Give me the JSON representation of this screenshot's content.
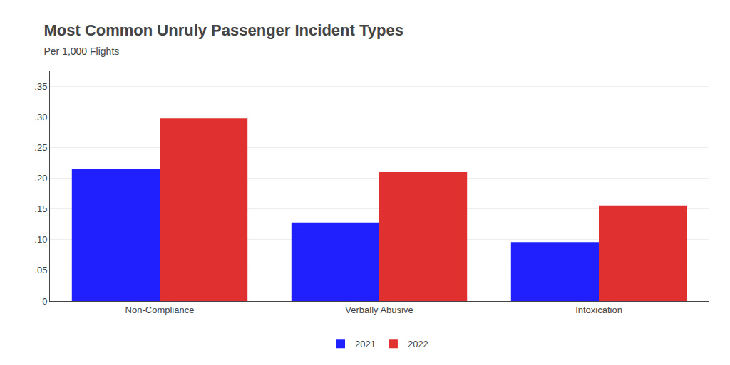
{
  "chart_data": {
    "type": "bar",
    "title": "Most Common Unruly Passenger Incident Types",
    "subtitle": "Per 1,000 Flights",
    "categories": [
      "Non-Compliance",
      "Verbally Abusive",
      "Intoxication"
    ],
    "series": [
      {
        "name": "2021",
        "color": "#2020ff",
        "values": [
          0.215,
          0.128,
          0.096
        ]
      },
      {
        "name": "2022",
        "color": "#e03030",
        "values": [
          0.298,
          0.21,
          0.156
        ]
      }
    ],
    "ylim": [
      0,
      0.375
    ],
    "yticks": [
      0,
      {
        "value": 0.05,
        "label": ".05"
      },
      {
        "value": 0.1,
        "label": ".10"
      },
      {
        "value": 0.15,
        "label": ".15"
      },
      {
        "value": 0.2,
        "label": ".20"
      },
      {
        "value": 0.25,
        "label": ".25"
      },
      {
        "value": 0.3,
        "label": ".30"
      },
      {
        "value": 0.35,
        "label": ".35"
      }
    ],
    "grid": true,
    "legend": "bottom"
  }
}
